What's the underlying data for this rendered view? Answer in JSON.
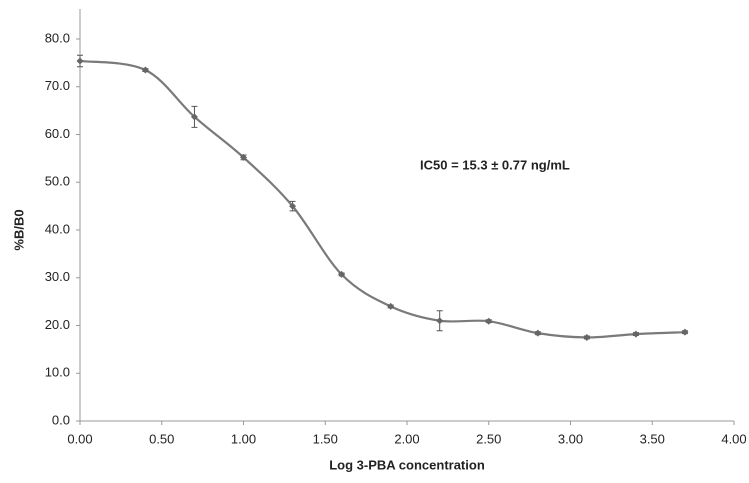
{
  "chart_data": {
    "type": "line",
    "x_label": "Log 3-PBA concentration",
    "y_label": "%B/B0",
    "annotation": "IC50 = 15.3 ± 0.77 ng/mL",
    "x": [
      0.0,
      0.4,
      0.7,
      1.0,
      1.3,
      1.6,
      1.9,
      2.2,
      2.5,
      2.8,
      3.1,
      3.4,
      3.7
    ],
    "series": [
      {
        "color": "#7a7a7a",
        "values": [
          75.4,
          73.5,
          63.7,
          55.2,
          45.0,
          30.7,
          24.0,
          21.0,
          20.9,
          18.4,
          17.5,
          18.2,
          18.6
        ],
        "errors": [
          1.2,
          0.3,
          2.2,
          0.5,
          1.0,
          0.3,
          0.3,
          2.1,
          0.3,
          0.3,
          0.3,
          0.3,
          0.3
        ]
      }
    ],
    "xlim": [
      0,
      4
    ],
    "ylim": [
      0,
      80
    ],
    "xticks": [
      {
        "value": 0,
        "label": "0.00"
      },
      {
        "value": 0.5,
        "label": "0.50"
      },
      {
        "value": 1,
        "label": "1.00"
      },
      {
        "value": 1.5,
        "label": "1.50"
      },
      {
        "value": 2,
        "label": "2.00"
      },
      {
        "value": 2.5,
        "label": "2.50"
      },
      {
        "value": 3,
        "label": "3.00"
      },
      {
        "value": 3.5,
        "label": "3.50"
      },
      {
        "value": 4,
        "label": "4.00"
      }
    ],
    "yticks": [
      {
        "value": 0,
        "label": "0.0"
      },
      {
        "value": 10,
        "label": "10.0"
      },
      {
        "value": 20,
        "label": "20.0"
      },
      {
        "value": 30,
        "label": "30.0"
      },
      {
        "value": 40,
        "label": "40.0"
      },
      {
        "value": 50,
        "label": "50.0"
      },
      {
        "value": 60,
        "label": "60.0"
      },
      {
        "value": 70,
        "label": "70.0"
      },
      {
        "value": 80,
        "label": "80.0"
      }
    ],
    "grid": false
  }
}
